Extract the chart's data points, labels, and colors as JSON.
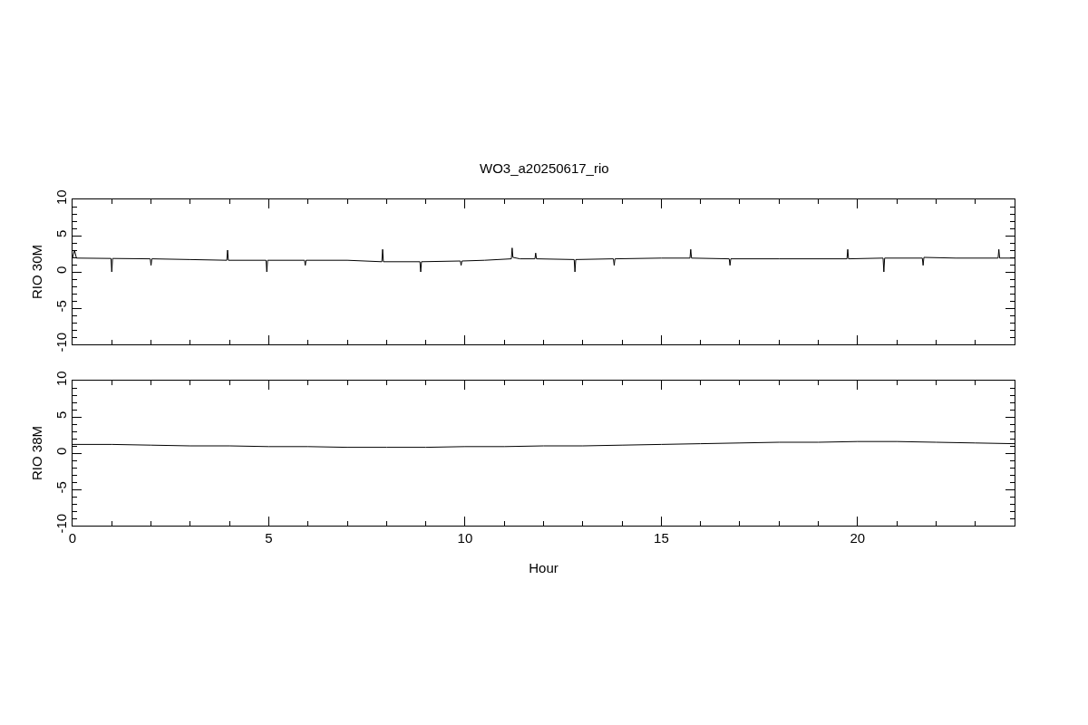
{
  "chart_data": [
    {
      "type": "line",
      "title": "WO3_a20250617_rio",
      "ylabel": "RIO 30M",
      "xlim": [
        0,
        24
      ],
      "xticks": [
        0,
        5,
        10,
        15,
        20
      ],
      "ylim": [
        -10,
        10
      ],
      "yticks": [
        -10,
        -5,
        0,
        5,
        10
      ],
      "tick_labels": "y",
      "x": [
        0.0,
        0.05,
        0.1,
        0.98,
        1.0,
        1.02,
        1.98,
        2.0,
        2.02,
        3.0,
        3.93,
        3.95,
        3.97,
        4.93,
        4.95,
        4.97,
        5.91,
        5.93,
        5.95,
        7.0,
        7.88,
        7.9,
        7.92,
        8.85,
        8.87,
        8.89,
        9.88,
        9.9,
        9.92,
        10.5,
        11.18,
        11.2,
        11.22,
        11.4,
        11.78,
        11.8,
        11.82,
        12.78,
        12.8,
        12.82,
        13.78,
        13.8,
        13.82,
        15.0,
        15.73,
        15.75,
        15.77,
        16.73,
        16.75,
        16.77,
        18.0,
        19.73,
        19.75,
        19.77,
        20.65,
        20.67,
        20.69,
        21.65,
        21.67,
        21.69,
        22.5,
        23.58,
        23.6,
        23.62,
        24.0
      ],
      "series": [
        {
          "color": "#000000",
          "values": [
            1.9,
            3.0,
            1.9,
            1.85,
            0.0,
            1.85,
            1.8,
            0.9,
            1.8,
            1.7,
            1.6,
            3.0,
            1.6,
            1.6,
            0.0,
            1.6,
            1.6,
            0.9,
            1.6,
            1.6,
            1.4,
            3.1,
            1.4,
            1.4,
            0.0,
            1.4,
            1.5,
            0.9,
            1.5,
            1.6,
            1.8,
            3.3,
            2.0,
            1.8,
            1.8,
            2.6,
            1.8,
            1.7,
            0.0,
            1.7,
            1.8,
            0.9,
            1.8,
            1.9,
            1.9,
            3.1,
            1.9,
            1.8,
            0.9,
            1.8,
            1.8,
            1.8,
            3.1,
            1.8,
            1.9,
            0.0,
            1.9,
            1.9,
            0.9,
            2.0,
            1.9,
            1.9,
            3.1,
            1.9,
            1.9
          ]
        }
      ]
    },
    {
      "type": "line",
      "xlabel": "Hour",
      "ylabel": "RIO 38M",
      "xlim": [
        0,
        24
      ],
      "xticks": [
        0,
        5,
        10,
        15,
        20
      ],
      "ylim": [
        -10,
        10
      ],
      "yticks": [
        -10,
        -5,
        0,
        5,
        10
      ],
      "x": [
        0,
        1,
        2,
        3,
        4,
        5,
        6,
        7,
        8,
        9,
        10,
        11,
        12,
        13,
        14,
        15,
        16,
        17,
        18,
        19,
        20,
        21,
        22,
        23,
        24
      ],
      "series": [
        {
          "color": "#000000",
          "values": [
            1.2,
            1.2,
            1.1,
            1.0,
            1.0,
            0.9,
            0.9,
            0.8,
            0.8,
            0.8,
            0.9,
            0.9,
            1.0,
            1.0,
            1.1,
            1.2,
            1.3,
            1.4,
            1.5,
            1.5,
            1.6,
            1.6,
            1.5,
            1.4,
            1.3
          ]
        }
      ]
    }
  ]
}
